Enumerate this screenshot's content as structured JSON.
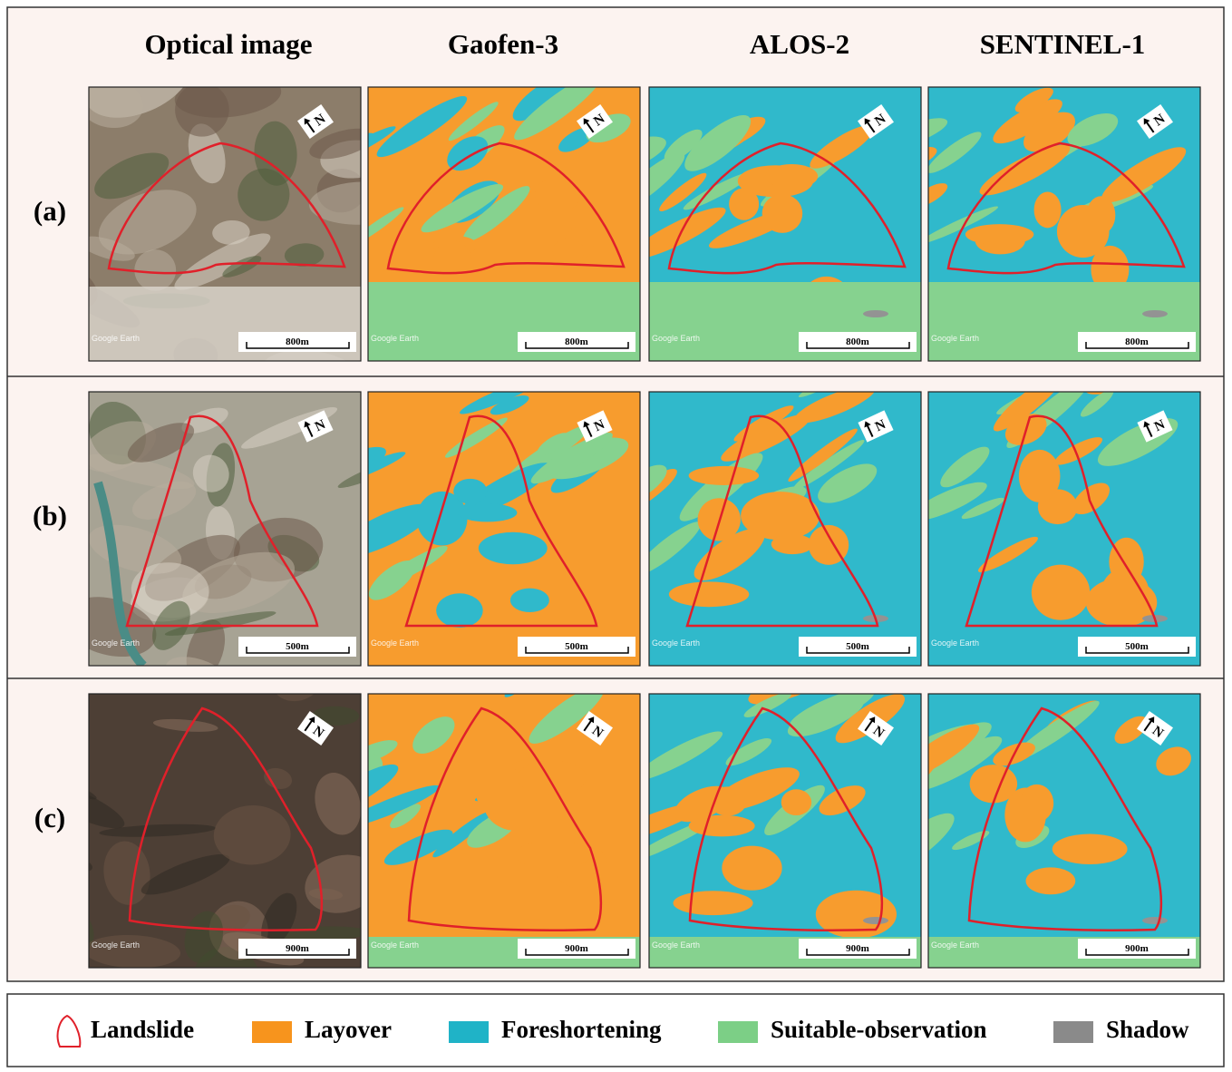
{
  "columns": [
    "Optical image",
    "Gaofen-3",
    "ALOS-2",
    "SENTINEL-1"
  ],
  "rows": [
    {
      "label": "(a)",
      "scale": "800m"
    },
    {
      "label": "(b)",
      "scale": "500m"
    },
    {
      "label": "(c)",
      "scale": "900m"
    }
  ],
  "watermark": "Google Earth",
  "north": "N",
  "legend": [
    {
      "label": "Landslide",
      "color": "#e0202a"
    },
    {
      "label": "Layover",
      "color": "#f7941d"
    },
    {
      "label": "Foreshortening",
      "color": "#1fb3c7"
    },
    {
      "label": "Suitable-observation",
      "color": "#7ccf86"
    },
    {
      "label": "Shadow",
      "color": "#8a8a8a"
    }
  ]
}
